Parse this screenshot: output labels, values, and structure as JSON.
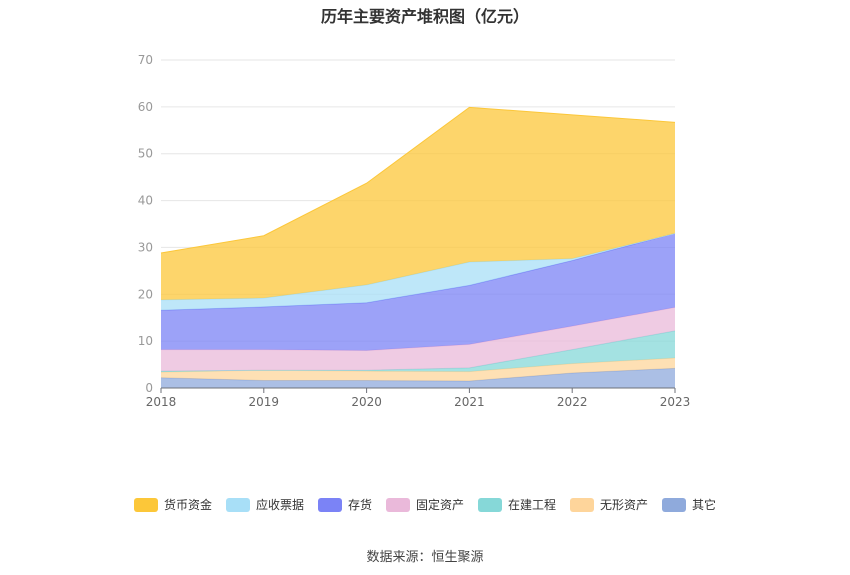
{
  "chart_data": {
    "type": "area",
    "stacked": true,
    "title": "历年主要资产堆积图（亿元）",
    "x": [
      "2018",
      "2019",
      "2020",
      "2021",
      "2022",
      "2023"
    ],
    "ylim": [
      0,
      70
    ],
    "yticks": [
      0,
      10,
      20,
      30,
      40,
      50,
      60,
      70
    ],
    "grid": true,
    "legend_position": "bottom",
    "series": [
      {
        "name": "其它",
        "color": "#8faadc",
        "values": [
          2.2,
          1.6,
          1.6,
          1.5,
          3.2,
          4.2
        ]
      },
      {
        "name": "无形资产",
        "color": "#fed59b",
        "values": [
          1.2,
          2.2,
          2.0,
          2.0,
          2.0,
          2.2
        ]
      },
      {
        "name": "在建工程",
        "color": "#86d8d8",
        "values": [
          0.2,
          0.0,
          0.2,
          0.8,
          3.0,
          5.8
        ]
      },
      {
        "name": "固定资产",
        "color": "#eab9da",
        "values": [
          4.6,
          4.4,
          4.2,
          5.0,
          5.0,
          5.0
        ]
      },
      {
        "name": "存货",
        "color": "#7b83f6",
        "values": [
          8.4,
          9.1,
          10.2,
          12.6,
          14.0,
          15.8
        ]
      },
      {
        "name": "应收票据",
        "color": "#a8dff7",
        "values": [
          2.2,
          1.9,
          3.8,
          5.0,
          0.4,
          0.0
        ]
      },
      {
        "name": "货币资金",
        "color": "#fcc739",
        "values": [
          10.0,
          13.3,
          21.7,
          33.0,
          30.7,
          23.7
        ]
      }
    ],
    "legend_order": [
      "货币资金",
      "应收票据",
      "存货",
      "固定资产",
      "在建工程",
      "无形资产",
      "其它"
    ]
  },
  "source_text": "数据来源：恒生聚源"
}
